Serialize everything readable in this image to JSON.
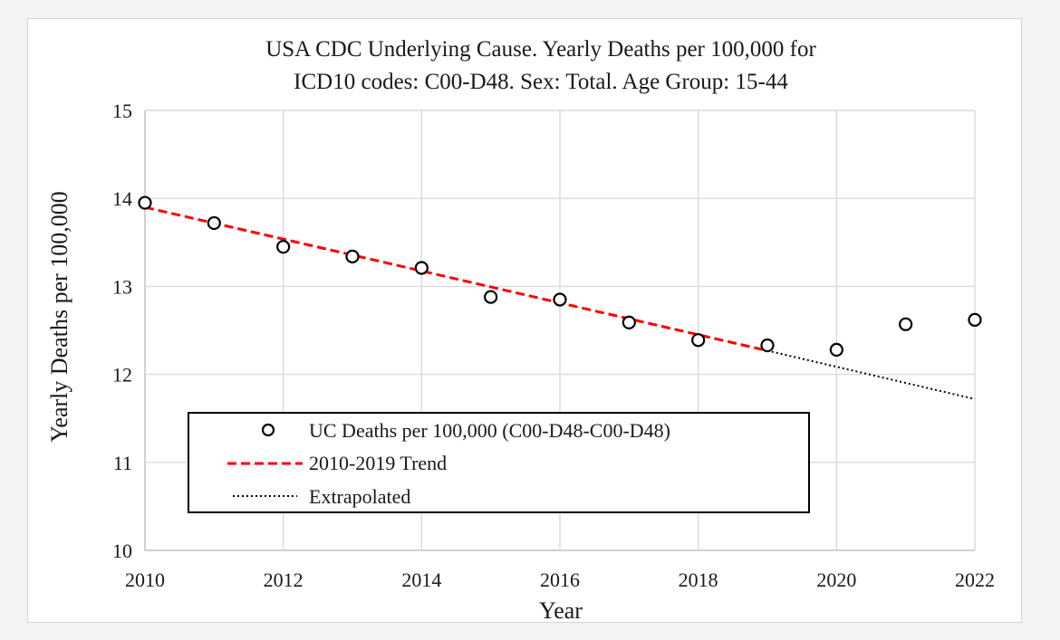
{
  "chart_data": {
    "type": "scatter",
    "title_lines": [
      "USA CDC Underlying Cause. Yearly Deaths per 100,000 for",
      "ICD10 codes: C00-D48. Sex: Total. Age Group: 15-44"
    ],
    "xlabel": "Year",
    "ylabel": "Yearly Deaths per 100,000",
    "xlim": [
      2010,
      2022
    ],
    "ylim": [
      10,
      15
    ],
    "x_ticks": [
      2010,
      2012,
      2014,
      2016,
      2018,
      2020,
      2022
    ],
    "y_ticks": [
      10,
      11,
      12,
      13,
      14,
      15
    ],
    "grid": true,
    "legend_position": "lower-left",
    "series": [
      {
        "name": "UC Deaths per 100,000 (C00-D48-C00-D48)",
        "kind": "scatter",
        "marker": "open-circle",
        "color": "#000000",
        "x": [
          2010,
          2011,
          2012,
          2013,
          2014,
          2015,
          2016,
          2017,
          2018,
          2019,
          2020,
          2021,
          2022
        ],
        "y": [
          13.95,
          13.72,
          13.45,
          13.34,
          13.21,
          12.88,
          12.85,
          12.59,
          12.39,
          12.33,
          12.28,
          12.57,
          12.62
        ]
      },
      {
        "name": "2010-2019 Trend",
        "kind": "line",
        "style": "dashed",
        "color": "#ff0000",
        "x": [
          2010,
          2019
        ],
        "y": [
          13.9,
          12.27
        ]
      },
      {
        "name": "Extrapolated",
        "kind": "line",
        "style": "dotted",
        "color": "#000000",
        "x": [
          2019,
          2022
        ],
        "y": [
          12.27,
          11.72
        ]
      }
    ],
    "colors": {
      "grid": "#d9d9d9",
      "axis": "#bfbfbf",
      "trend": "#ff0000",
      "marker": "#000000",
      "extrapolated": "#000000"
    }
  }
}
